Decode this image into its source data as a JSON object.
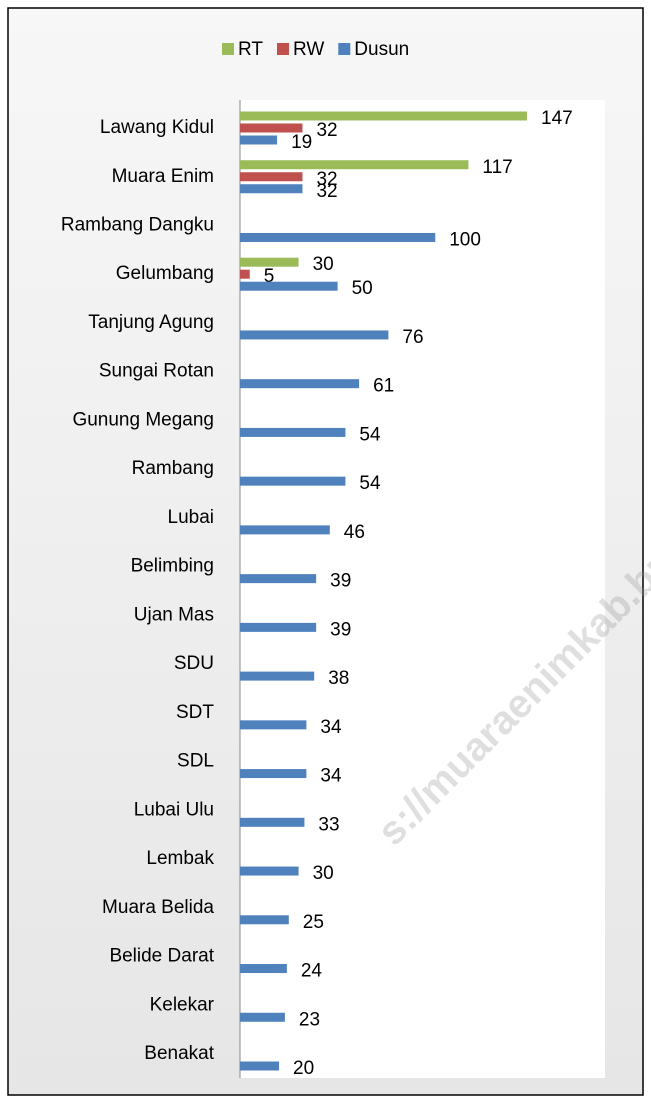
{
  "chart_data": {
    "type": "bar",
    "orientation": "horizontal",
    "categories": [
      "Lawang Kidul",
      "Muara Enim",
      "Rambang Dangku",
      "Gelumbang",
      "Tanjung Agung",
      "Sungai Rotan",
      "Gunung Megang",
      "Rambang",
      "Lubai",
      "Belimbing",
      "Ujan Mas",
      "SDU",
      "SDT",
      "SDL",
      "Lubai Ulu",
      "Lembak",
      "Muara Belida",
      "Belide Darat",
      "Kelekar",
      "Benakat"
    ],
    "series": [
      {
        "name": "RT",
        "color": "#9bbb59",
        "values": [
          147,
          117,
          null,
          30,
          null,
          null,
          null,
          null,
          null,
          null,
          null,
          null,
          null,
          null,
          null,
          null,
          null,
          null,
          null,
          null
        ]
      },
      {
        "name": "RW",
        "color": "#c0504d",
        "values": [
          32,
          32,
          null,
          5,
          null,
          null,
          null,
          null,
          null,
          null,
          null,
          null,
          null,
          null,
          null,
          null,
          null,
          null,
          null,
          null
        ]
      },
      {
        "name": "Dusun",
        "color": "#4f81bd",
        "values": [
          19,
          32,
          100,
          50,
          76,
          61,
          54,
          54,
          46,
          39,
          39,
          38,
          34,
          34,
          33,
          30,
          25,
          24,
          23,
          20
        ]
      }
    ],
    "legend": "top",
    "watermark": "s://muaraenimkab.bps.go.id"
  }
}
